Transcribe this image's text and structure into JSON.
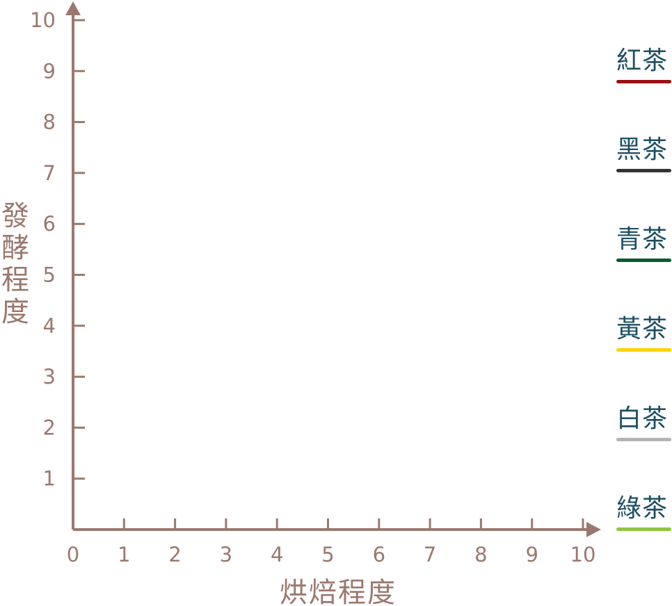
{
  "chart_data": {
    "type": "scatter",
    "xlabel": "烘焙程度",
    "ylabel": "發酵程度",
    "xlim": [
      0,
      10
    ],
    "ylim": [
      0,
      10
    ],
    "x_ticks": [
      "0",
      "1",
      "2",
      "3",
      "4",
      "5",
      "6",
      "7",
      "8",
      "9",
      "10"
    ],
    "y_ticks": [
      "1",
      "2",
      "3",
      "4",
      "5",
      "6",
      "7",
      "8",
      "9",
      "10"
    ],
    "grid": false,
    "legend_position": "right",
    "axis_color": "#9b786f",
    "series": [
      {
        "name": "紅茶",
        "color": "#9b0f12"
      },
      {
        "name": "黑茶",
        "color": "#333333"
      },
      {
        "name": "青茶",
        "color": "#0c5a2c"
      },
      {
        "name": "黃茶",
        "color": "#ffd200"
      },
      {
        "name": "白茶",
        "color": "#b3b3b3"
      },
      {
        "name": "綠茶",
        "color": "#8cc63f"
      }
    ],
    "points": []
  }
}
